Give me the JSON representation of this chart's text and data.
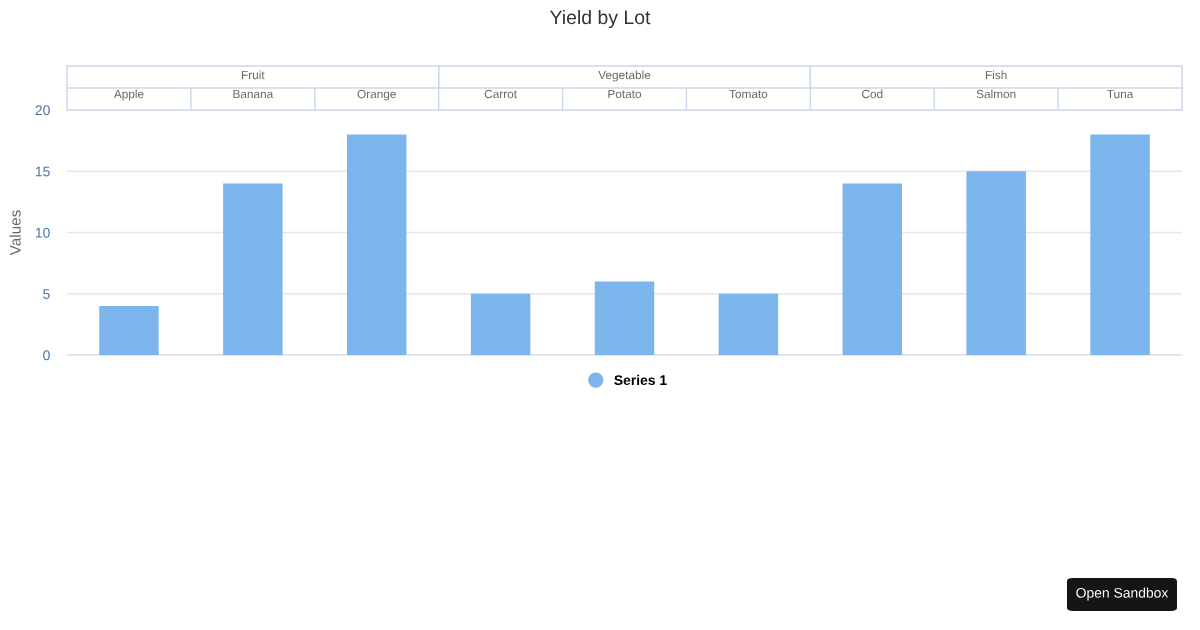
{
  "chart_data": {
    "type": "bar",
    "title": "Yield by Lot",
    "ylabel": "Values",
    "categories": [
      "Apple",
      "Banana",
      "Orange",
      "Carrot",
      "Potato",
      "Tomato",
      "Cod",
      "Salmon",
      "Tuna"
    ],
    "series": [
      {
        "name": "Series 1",
        "color": "#7cb5ec",
        "values": [
          4,
          14,
          18,
          5,
          6,
          5,
          14,
          15,
          18
        ]
      }
    ],
    "ylim": [
      0,
      20
    ],
    "yticks": [
      0,
      5,
      10,
      15,
      20
    ],
    "grid": "y",
    "legend": "bottom",
    "annotations": [
      "Fruit",
      "Vegetable",
      "Fish",
      "Open Sandbox"
    ]
  }
}
